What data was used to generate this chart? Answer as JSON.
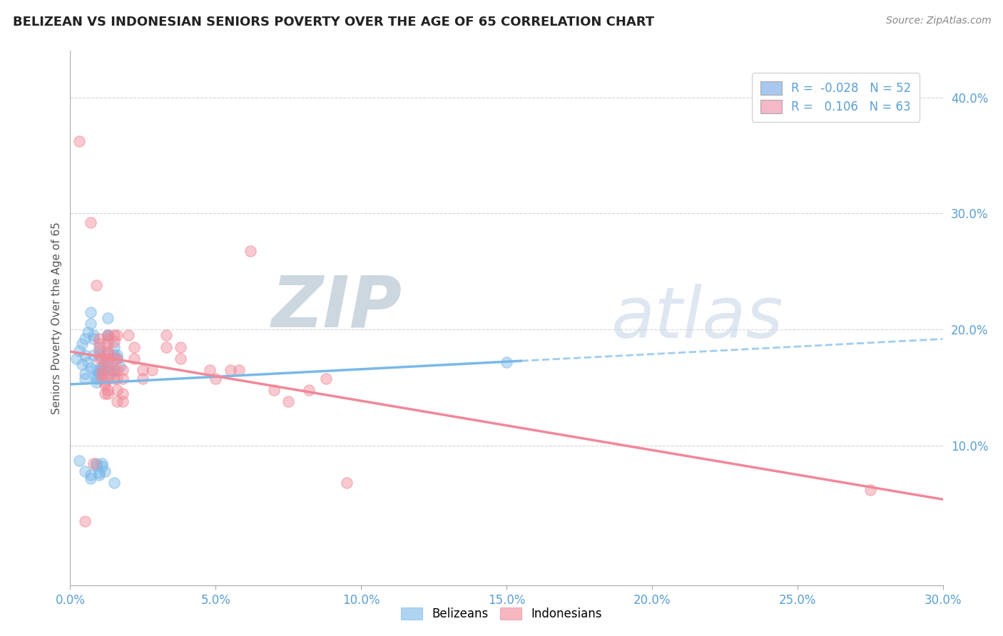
{
  "title": "BELIZEAN VS INDONESIAN SENIORS POVERTY OVER THE AGE OF 65 CORRELATION CHART",
  "source": "Source: ZipAtlas.com",
  "ylabel": "Seniors Poverty Over the Age of 65",
  "xlim": [
    0.0,
    0.3
  ],
  "ylim": [
    -0.02,
    0.44
  ],
  "xticks": [
    0.0,
    0.05,
    0.1,
    0.15,
    0.2,
    0.25,
    0.3
  ],
  "yticks_right": [
    0.1,
    0.2,
    0.3,
    0.4
  ],
  "watermark_zip": "ZIP",
  "watermark_atlas": "atlas",
  "watermark_color_zip": "#c8d4e0",
  "watermark_color_atlas": "#c8d8e8",
  "belizean_color": "#7ab8e8",
  "indonesian_color": "#f08898",
  "background_color": "#ffffff",
  "grid_color": "#cccccc",
  "legend_r1": "R = ",
  "legend_v1": "-0.028",
  "legend_n1": "  N = 52",
  "legend_r2": "R = ",
  "legend_v2": " 0.106",
  "legend_n2": "  N = 63",
  "legend_color1": "#a8c8f0",
  "legend_color2": "#f4b8c8",
  "legend_val_color": "#5a9fd4",
  "belizean_points": [
    [
      0.002,
      0.175
    ],
    [
      0.003,
      0.182
    ],
    [
      0.004,
      0.188
    ],
    [
      0.004,
      0.17
    ],
    [
      0.005,
      0.192
    ],
    [
      0.005,
      0.178
    ],
    [
      0.005,
      0.162
    ],
    [
      0.005,
      0.158
    ],
    [
      0.006,
      0.198
    ],
    [
      0.006,
      0.172
    ],
    [
      0.007,
      0.205
    ],
    [
      0.007,
      0.215
    ],
    [
      0.007,
      0.167
    ],
    [
      0.008,
      0.178
    ],
    [
      0.008,
      0.192
    ],
    [
      0.008,
      0.195
    ],
    [
      0.009,
      0.165
    ],
    [
      0.009,
      0.158
    ],
    [
      0.009,
      0.155
    ],
    [
      0.009,
      0.16
    ],
    [
      0.01,
      0.162
    ],
    [
      0.01,
      0.185
    ],
    [
      0.01,
      0.178
    ],
    [
      0.01,
      0.165
    ],
    [
      0.011,
      0.165
    ],
    [
      0.011,
      0.168
    ],
    [
      0.012,
      0.172
    ],
    [
      0.012,
      0.178
    ],
    [
      0.013,
      0.195
    ],
    [
      0.013,
      0.21
    ],
    [
      0.013,
      0.195
    ],
    [
      0.013,
      0.168
    ],
    [
      0.014,
      0.165
    ],
    [
      0.014,
      0.162
    ],
    [
      0.015,
      0.185
    ],
    [
      0.015,
      0.178
    ],
    [
      0.016,
      0.178
    ],
    [
      0.016,
      0.175
    ],
    [
      0.017,
      0.168
    ],
    [
      0.003,
      0.087
    ],
    [
      0.005,
      0.078
    ],
    [
      0.007,
      0.075
    ],
    [
      0.007,
      0.072
    ],
    [
      0.009,
      0.085
    ],
    [
      0.009,
      0.083
    ],
    [
      0.01,
      0.077
    ],
    [
      0.01,
      0.075
    ],
    [
      0.011,
      0.085
    ],
    [
      0.011,
      0.082
    ],
    [
      0.012,
      0.078
    ],
    [
      0.015,
      0.068
    ],
    [
      0.15,
      0.172
    ]
  ],
  "indonesian_points": [
    [
      0.003,
      0.362
    ],
    [
      0.007,
      0.292
    ],
    [
      0.009,
      0.238
    ],
    [
      0.01,
      0.192
    ],
    [
      0.01,
      0.188
    ],
    [
      0.01,
      0.182
    ],
    [
      0.01,
      0.175
    ],
    [
      0.011,
      0.175
    ],
    [
      0.011,
      0.165
    ],
    [
      0.011,
      0.162
    ],
    [
      0.011,
      0.158
    ],
    [
      0.012,
      0.155
    ],
    [
      0.012,
      0.152
    ],
    [
      0.012,
      0.145
    ],
    [
      0.013,
      0.195
    ],
    [
      0.013,
      0.192
    ],
    [
      0.013,
      0.188
    ],
    [
      0.013,
      0.182
    ],
    [
      0.013,
      0.18
    ],
    [
      0.013,
      0.175
    ],
    [
      0.013,
      0.172
    ],
    [
      0.013,
      0.165
    ],
    [
      0.013,
      0.158
    ],
    [
      0.013,
      0.148
    ],
    [
      0.013,
      0.145
    ],
    [
      0.015,
      0.195
    ],
    [
      0.015,
      0.19
    ],
    [
      0.015,
      0.175
    ],
    [
      0.015,
      0.165
    ],
    [
      0.015,
      0.158
    ],
    [
      0.016,
      0.195
    ],
    [
      0.016,
      0.175
    ],
    [
      0.016,
      0.165
    ],
    [
      0.016,
      0.158
    ],
    [
      0.016,
      0.148
    ],
    [
      0.016,
      0.138
    ],
    [
      0.018,
      0.165
    ],
    [
      0.018,
      0.158
    ],
    [
      0.018,
      0.145
    ],
    [
      0.018,
      0.138
    ],
    [
      0.02,
      0.195
    ],
    [
      0.022,
      0.185
    ],
    [
      0.022,
      0.175
    ],
    [
      0.025,
      0.165
    ],
    [
      0.025,
      0.158
    ],
    [
      0.028,
      0.165
    ],
    [
      0.033,
      0.195
    ],
    [
      0.033,
      0.185
    ],
    [
      0.038,
      0.185
    ],
    [
      0.038,
      0.175
    ],
    [
      0.048,
      0.165
    ],
    [
      0.05,
      0.158
    ],
    [
      0.055,
      0.165
    ],
    [
      0.058,
      0.165
    ],
    [
      0.062,
      0.268
    ],
    [
      0.07,
      0.148
    ],
    [
      0.075,
      0.138
    ],
    [
      0.082,
      0.148
    ],
    [
      0.088,
      0.158
    ],
    [
      0.005,
      0.035
    ],
    [
      0.008,
      0.085
    ],
    [
      0.095,
      0.068
    ],
    [
      0.275,
      0.062
    ]
  ]
}
